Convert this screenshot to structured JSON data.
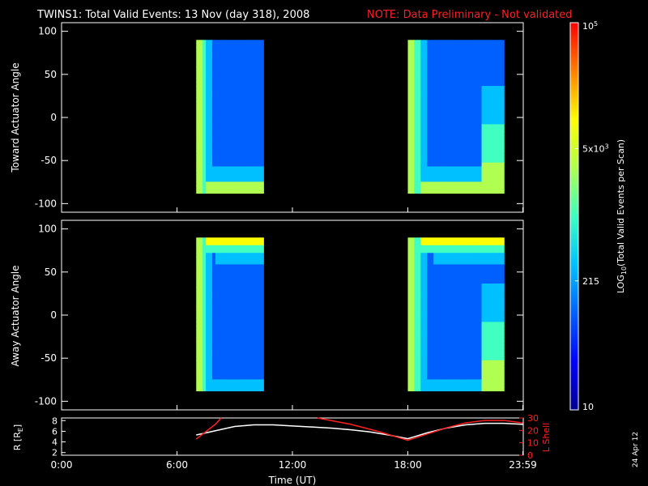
{
  "title": {
    "main": "TWINS1: Total Valid Events: 13 Nov (day 318), 2008",
    "note": "NOTE: Data Preliminary - Not validated",
    "note_color": "#ff2020"
  },
  "side_date": "24 Apr 12",
  "colors": {
    "background": "#000000",
    "foreground": "#ffffff",
    "accent": "#ff2020"
  },
  "colorbar": {
    "label_prefix": "LOG",
    "label_sub": "10",
    "label_suffix": "(Total Valid Events per Scan)",
    "ticks": [
      "10",
      "215",
      "5x10^3",
      "10^5"
    ],
    "tick_values": [
      10,
      215,
      5000,
      100000
    ],
    "range": [
      10,
      100000
    ],
    "scale": "log",
    "colors": [
      "#00008f",
      "#0000ff",
      "#0060ff",
      "#00c0ff",
      "#40ffc0",
      "#b0ff50",
      "#ffff00",
      "#ff8000",
      "#ff0000"
    ]
  },
  "chart_data": [
    {
      "type": "heatmap",
      "name": "toward",
      "ylabel": "Toward Actuator Angle",
      "ylim": [
        -110,
        110
      ],
      "yticks": [
        -100,
        -50,
        0,
        50,
        100
      ],
      "xlim": [
        0,
        24
      ],
      "z_scale": "log",
      "data_blocks": [
        {
          "t_start": 7.0,
          "t_end": 10.5,
          "angle_range": [
            -88,
            90
          ]
        },
        {
          "t_start": 18.0,
          "t_end": 23.0,
          "angle_range": [
            -88,
            90
          ]
        }
      ]
    },
    {
      "type": "heatmap",
      "name": "away",
      "ylabel": "Away Actuator Angle",
      "ylim": [
        -110,
        110
      ],
      "yticks": [
        -100,
        -50,
        0,
        50,
        100
      ],
      "xlim": [
        0,
        24
      ],
      "z_scale": "log",
      "data_blocks": [
        {
          "t_start": 7.0,
          "t_end": 10.5,
          "angle_range": [
            -88,
            90
          ]
        },
        {
          "t_start": 18.0,
          "t_end": 23.0,
          "angle_range": [
            -88,
            90
          ]
        }
      ]
    },
    {
      "type": "line",
      "name": "orbit",
      "ylabel": "R [R",
      "ylabel_sub": "E",
      "ylabel_end": "]",
      "y2label": "L Shell",
      "ylim": [
        1.5,
        8.5
      ],
      "yticks": [
        "2",
        "4",
        "6",
        "8"
      ],
      "ytick_values": [
        2,
        4,
        6,
        8
      ],
      "y2lim": [
        0,
        30
      ],
      "y2ticks": [
        "0",
        "10",
        "20",
        "30"
      ],
      "y2tick_values": [
        0,
        10,
        20,
        30
      ],
      "xlabel": "Time (UT)",
      "xticks": [
        "0:00",
        "6:00",
        "12:00",
        "18:00",
        "23:59"
      ],
      "xtick_values": [
        0,
        6,
        12,
        18,
        23.98
      ],
      "xlim": [
        0,
        24
      ],
      "series": [
        {
          "color": "#ffffff",
          "x": [
            7.0,
            8.0,
            9.0,
            10.0,
            11.0,
            12.0,
            13.0,
            14.0,
            15.0,
            16.0,
            17.0,
            18.0,
            19.0,
            20.0,
            21.0,
            22.0,
            23.0,
            23.98
          ],
          "y": [
            5.3,
            6.1,
            6.9,
            7.2,
            7.2,
            7.0,
            6.8,
            6.6,
            6.3,
            5.9,
            5.3,
            4.6,
            5.7,
            6.6,
            7.2,
            7.5,
            7.5,
            7.3
          ]
        },
        {
          "color": "#ff2020",
          "x": [
            7.0,
            8.0,
            8.3
          ],
          "y2": [
            13,
            25,
            30
          ],
          "segment": 1
        },
        {
          "color": "#ff2020",
          "x": [
            13.3,
            15.0,
            16.5,
            18.0,
            19.0,
            20.0,
            21.0,
            22.0,
            23.0,
            23.98
          ],
          "y2": [
            30,
            25,
            19,
            12,
            17,
            22,
            26,
            28,
            28,
            26
          ],
          "segment": 2
        }
      ]
    }
  ]
}
